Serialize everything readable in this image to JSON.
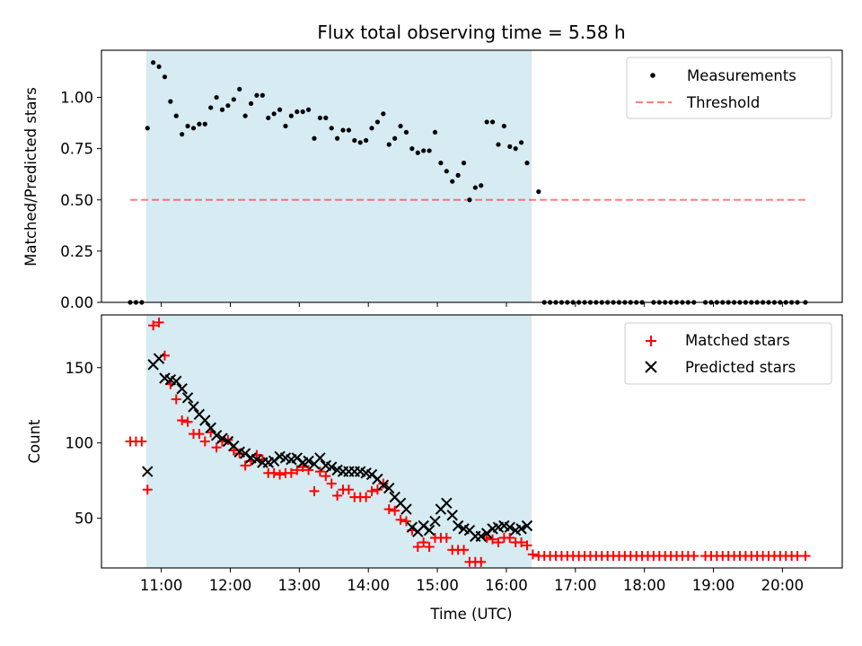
{
  "chart_data": [
    {
      "panel": "top",
      "type": "scatter",
      "title": "Flux total observing time = 5.58 h",
      "xlabel": "",
      "ylabel": "Matched/Predicted stars",
      "ylim": [
        0,
        1.23
      ],
      "yticks": [
        0.0,
        0.25,
        0.5,
        0.75,
        1.0
      ],
      "ytick_labels": [
        "0.00",
        "0.25",
        "0.50",
        "0.75",
        "1.00"
      ],
      "shaded_span": {
        "start": "10:47",
        "end": "16:22",
        "color": "#add8e6"
      },
      "legend_position": "top-right",
      "threshold": {
        "name": "Threshold",
        "value": 0.5,
        "x_start": "10:33",
        "x_end": "20:20",
        "color": "#ff0000",
        "style": "dashed",
        "alpha": 0.5
      },
      "series": [
        {
          "name": "Measurements",
          "marker": "dot",
          "color": "#000000",
          "x": [
            "10:33",
            "10:38",
            "10:43",
            "10:48",
            "10:53",
            "10:58",
            "11:03",
            "11:08",
            "11:13",
            "11:18",
            "11:23",
            "11:28",
            "11:33",
            "11:38",
            "11:43",
            "11:48",
            "11:53",
            "11:58",
            "12:03",
            "12:08",
            "12:13",
            "12:18",
            "12:23",
            "12:28",
            "12:33",
            "12:38",
            "12:43",
            "12:48",
            "12:53",
            "12:58",
            "13:03",
            "13:08",
            "13:13",
            "13:18",
            "13:23",
            "13:28",
            "13:33",
            "13:38",
            "13:43",
            "13:48",
            "13:53",
            "13:58",
            "14:03",
            "14:08",
            "14:13",
            "14:18",
            "14:23",
            "14:28",
            "14:33",
            "14:38",
            "14:43",
            "14:48",
            "14:53",
            "14:58",
            "15:03",
            "15:08",
            "15:13",
            "15:18",
            "15:23",
            "15:28",
            "15:33",
            "15:38",
            "15:43",
            "15:48",
            "15:53",
            "15:58",
            "16:03",
            "16:08",
            "16:13",
            "16:18",
            "16:28",
            "16:33",
            "16:38",
            "16:43",
            "16:48",
            "16:53",
            "16:58",
            "17:03",
            "17:08",
            "17:13",
            "17:18",
            "17:23",
            "17:28",
            "17:33",
            "17:38",
            "17:43",
            "17:48",
            "17:53",
            "17:58",
            "18:08",
            "18:13",
            "18:18",
            "18:23",
            "18:28",
            "18:33",
            "18:38",
            "18:43",
            "18:53",
            "18:58",
            "19:03",
            "19:08",
            "19:13",
            "19:18",
            "19:23",
            "19:28",
            "19:33",
            "19:38",
            "19:43",
            "19:48",
            "19:53",
            "19:58",
            "20:03",
            "20:08",
            "20:13",
            "20:20"
          ],
          "y": [
            0,
            0,
            0,
            0.85,
            1.17,
            1.15,
            1.1,
            0.98,
            0.91,
            0.82,
            0.86,
            0.85,
            0.87,
            0.87,
            0.95,
            1.0,
            0.94,
            0.96,
            0.99,
            1.04,
            0.91,
            0.97,
            1.01,
            1.01,
            0.9,
            0.92,
            0.94,
            0.86,
            0.91,
            0.93,
            0.93,
            0.94,
            0.8,
            0.9,
            0.9,
            0.85,
            0.8,
            0.84,
            0.84,
            0.79,
            0.78,
            0.79,
            0.85,
            0.88,
            0.92,
            0.77,
            0.8,
            0.86,
            0.83,
            0.75,
            0.73,
            0.74,
            0.74,
            0.83,
            0.68,
            0.64,
            0.59,
            0.62,
            0.68,
            0.5,
            0.56,
            0.57,
            0.88,
            0.88,
            0.77,
            0.86,
            0.76,
            0.75,
            0.78,
            0.68,
            0.54,
            0,
            0,
            0,
            0,
            0,
            0,
            0,
            0,
            0,
            0,
            0,
            0,
            0,
            0,
            0,
            0,
            0,
            0,
            0,
            0,
            0,
            0,
            0,
            0,
            0,
            0,
            0,
            0,
            0,
            0,
            0,
            0,
            0,
            0,
            0,
            0,
            0,
            0,
            0,
            0,
            0,
            0,
            0,
            0
          ]
        }
      ]
    },
    {
      "panel": "bottom",
      "type": "scatter",
      "title": "",
      "xlabel": "Time (UTC)",
      "ylabel": "Count",
      "ylim": [
        17,
        185
      ],
      "yticks": [
        50,
        100,
        150
      ],
      "ytick_labels": [
        "50",
        "100",
        "150"
      ],
      "xlim": [
        "10:08",
        "20:52"
      ],
      "xticks": [
        "11:00",
        "12:00",
        "13:00",
        "14:00",
        "15:00",
        "16:00",
        "17:00",
        "18:00",
        "19:00",
        "20:00"
      ],
      "shaded_span": {
        "start": "10:47",
        "end": "16:22",
        "color": "#add8e6"
      },
      "legend_position": "top-right",
      "series": [
        {
          "name": "Matched stars",
          "marker": "plus",
          "color": "#ff0000",
          "x": [
            "10:33",
            "10:38",
            "10:43",
            "10:48",
            "10:53",
            "10:58",
            "11:03",
            "11:08",
            "11:13",
            "11:18",
            "11:23",
            "11:28",
            "11:33",
            "11:38",
            "11:43",
            "11:48",
            "11:53",
            "11:58",
            "12:03",
            "12:08",
            "12:13",
            "12:18",
            "12:23",
            "12:28",
            "12:33",
            "12:38",
            "12:43",
            "12:48",
            "12:53",
            "12:58",
            "13:03",
            "13:08",
            "13:13",
            "13:18",
            "13:23",
            "13:28",
            "13:33",
            "13:38",
            "13:43",
            "13:48",
            "13:53",
            "13:58",
            "14:03",
            "14:08",
            "14:13",
            "14:18",
            "14:23",
            "14:28",
            "14:33",
            "14:38",
            "14:43",
            "14:48",
            "14:53",
            "14:58",
            "15:03",
            "15:08",
            "15:13",
            "15:18",
            "15:23",
            "15:28",
            "15:33",
            "15:38",
            "15:43",
            "15:48",
            "15:53",
            "15:58",
            "16:03",
            "16:08",
            "16:13",
            "16:18",
            "16:23",
            "16:28",
            "16:33",
            "16:38",
            "16:43",
            "16:48",
            "16:53",
            "16:58",
            "17:03",
            "17:08",
            "17:13",
            "17:18",
            "17:23",
            "17:28",
            "17:33",
            "17:38",
            "17:43",
            "17:48",
            "17:53",
            "17:58",
            "18:03",
            "18:08",
            "18:13",
            "18:18",
            "18:23",
            "18:28",
            "18:33",
            "18:38",
            "18:43",
            "18:53",
            "18:58",
            "19:03",
            "19:08",
            "19:13",
            "19:18",
            "19:23",
            "19:28",
            "19:33",
            "19:38",
            "19:43",
            "19:48",
            "19:53",
            "19:58",
            "20:03",
            "20:08",
            "20:13",
            "20:20"
          ],
          "y": [
            101,
            101,
            101,
            69,
            178,
            180,
            158,
            139,
            129,
            115,
            114,
            106,
            106,
            101,
            107,
            97,
            101,
            102,
            95,
            93,
            85,
            88,
            92,
            89,
            80,
            80,
            79,
            80,
            80,
            82,
            84,
            82,
            68,
            81,
            78,
            73,
            65,
            69,
            69,
            64,
            64,
            64,
            68,
            69,
            73,
            56,
            55,
            49,
            48,
            42,
            31,
            34,
            31,
            37,
            37,
            37,
            29,
            29,
            29,
            21,
            21,
            21,
            37,
            36,
            34,
            37,
            37,
            34,
            34,
            32,
            26,
            25,
            25,
            25,
            25,
            25,
            25,
            25,
            25,
            25,
            25,
            25,
            25,
            25,
            25,
            25,
            25,
            25,
            25,
            25,
            25,
            25,
            25,
            25,
            25,
            25,
            25,
            25,
            25,
            25,
            25,
            25,
            25,
            25,
            25,
            25,
            25,
            25,
            25,
            25,
            25,
            25,
            25,
            25,
            25,
            25,
            25
          ]
        },
        {
          "name": "Predicted stars",
          "marker": "x",
          "color": "#000000",
          "x": [
            "10:48",
            "10:53",
            "10:58",
            "11:03",
            "11:08",
            "11:13",
            "11:18",
            "11:23",
            "11:28",
            "11:33",
            "11:38",
            "11:43",
            "11:48",
            "11:53",
            "11:58",
            "12:03",
            "12:08",
            "12:13",
            "12:18",
            "12:23",
            "12:28",
            "12:33",
            "12:38",
            "12:43",
            "12:48",
            "12:53",
            "12:58",
            "13:03",
            "13:08",
            "13:13",
            "13:18",
            "13:23",
            "13:28",
            "13:33",
            "13:38",
            "13:43",
            "13:48",
            "13:53",
            "13:58",
            "14:03",
            "14:08",
            "14:13",
            "14:18",
            "14:23",
            "14:28",
            "14:33",
            "14:38",
            "14:43",
            "14:48",
            "14:53",
            "14:58",
            "15:03",
            "15:08",
            "15:13",
            "15:18",
            "15:23",
            "15:28",
            "15:33",
            "15:38",
            "15:43",
            "15:48",
            "15:53",
            "15:58",
            "16:03",
            "16:08",
            "16:13",
            "16:18"
          ],
          "y": [
            81,
            152,
            156,
            143,
            142,
            141,
            136,
            130,
            124,
            119,
            115,
            110,
            105,
            103,
            101,
            98,
            94,
            93,
            90,
            89,
            87,
            87,
            88,
            91,
            90,
            89,
            90,
            87,
            88,
            86,
            90,
            85,
            84,
            82,
            81,
            81,
            81,
            81,
            80,
            79,
            76,
            72,
            70,
            64,
            60,
            56,
            44,
            41,
            45,
            42,
            48,
            56,
            60,
            52,
            45,
            43,
            42,
            38,
            38,
            40,
            43,
            44,
            45,
            44,
            42,
            43,
            45
          ]
        }
      ]
    }
  ]
}
